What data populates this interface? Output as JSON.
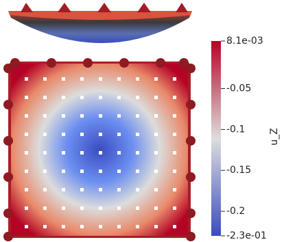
{
  "chart_data": {
    "type": "colorbar",
    "title": "u_Z",
    "ylim": [
      -0.23,
      0.0081
    ],
    "yticks": [
      {
        "value": 0.0081,
        "label": "8.1e-03"
      },
      -0.05,
      -0.1,
      -0.15,
      -0.2,
      {
        "value": -0.23,
        "label": "-2.3e-01"
      }
    ],
    "colors": [
      "#3b4cc0",
      "#dddddd",
      "#b40426"
    ]
  }
}
